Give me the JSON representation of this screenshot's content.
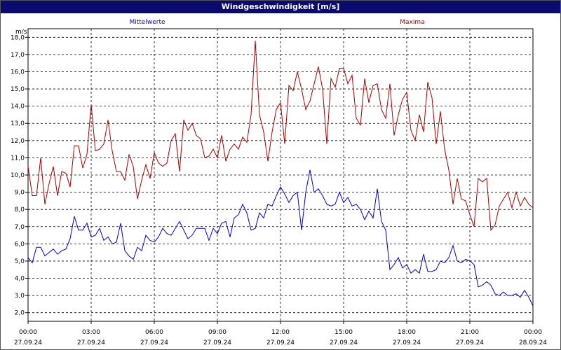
{
  "chart_data": {
    "type": "line",
    "title": "Windgeschwindigkeit [m/s]",
    "ylabel": "m/s",
    "ylim": [
      1.5,
      18.5
    ],
    "xlim": [
      0,
      24
    ],
    "grid": true,
    "yticks": [
      "2,0",
      "3,0",
      "4,0",
      "5,0",
      "6,0",
      "7,0",
      "8,0",
      "9,0",
      "10,0",
      "11,0",
      "12,0",
      "13,0",
      "14,0",
      "15,0",
      "16,0",
      "17,0",
      "18,0"
    ],
    "xticks": [
      {
        "time": "00:00",
        "date": "27.09.24"
      },
      {
        "time": "03:00",
        "date": "27.09.24"
      },
      {
        "time": "06:00",
        "date": "27.09.24"
      },
      {
        "time": "09:00",
        "date": "27.09.24"
      },
      {
        "time": "12:00",
        "date": "27.09.24"
      },
      {
        "time": "15:00",
        "date": "27.09.24"
      },
      {
        "time": "18:00",
        "date": "27.09.24"
      },
      {
        "time": "21:00",
        "date": "27.09.24"
      },
      {
        "time": "00:00",
        "date": "28.09.24"
      }
    ],
    "series": [
      {
        "name": "Mittelwerte",
        "color": "#0000cc",
        "points": [
          [
            0.0,
            5.2
          ],
          [
            0.2,
            4.9
          ],
          [
            0.4,
            5.8
          ],
          [
            0.6,
            5.8
          ],
          [
            0.8,
            5.3
          ],
          [
            1.0,
            5.5
          ],
          [
            1.2,
            5.7
          ],
          [
            1.4,
            5.4
          ],
          [
            1.6,
            5.6
          ],
          [
            1.8,
            5.7
          ],
          [
            2.0,
            6.3
          ],
          [
            2.2,
            7.6
          ],
          [
            2.4,
            6.8
          ],
          [
            2.6,
            6.8
          ],
          [
            2.8,
            7.2
          ],
          [
            3.0,
            6.4
          ],
          [
            3.2,
            6.5
          ],
          [
            3.4,
            6.9
          ],
          [
            3.6,
            6.2
          ],
          [
            3.8,
            6.4
          ],
          [
            4.0,
            6.0
          ],
          [
            4.2,
            6.1
          ],
          [
            4.4,
            7.2
          ],
          [
            4.6,
            5.6
          ],
          [
            4.8,
            5.3
          ],
          [
            5.0,
            5.1
          ],
          [
            5.2,
            5.8
          ],
          [
            5.4,
            5.6
          ],
          [
            5.6,
            6.5
          ],
          [
            5.8,
            6.2
          ],
          [
            6.0,
            6.1
          ],
          [
            6.2,
            6.4
          ],
          [
            6.4,
            6.9
          ],
          [
            6.6,
            6.6
          ],
          [
            6.8,
            6.5
          ],
          [
            7.0,
            6.9
          ],
          [
            7.2,
            7.3
          ],
          [
            7.4,
            6.8
          ],
          [
            7.6,
            6.3
          ],
          [
            7.8,
            6.5
          ],
          [
            8.0,
            6.9
          ],
          [
            8.2,
            6.9
          ],
          [
            8.4,
            6.9
          ],
          [
            8.6,
            6.2
          ],
          [
            8.8,
            6.9
          ],
          [
            9.0,
            6.6
          ],
          [
            9.2,
            7.2
          ],
          [
            9.4,
            7.3
          ],
          [
            9.6,
            6.4
          ],
          [
            9.8,
            7.5
          ],
          [
            10.0,
            7.7
          ],
          [
            10.2,
            8.3
          ],
          [
            10.4,
            7.8
          ],
          [
            10.6,
            6.8
          ],
          [
            10.8,
            6.9
          ],
          [
            11.0,
            7.8
          ],
          [
            11.2,
            7.5
          ],
          [
            11.4,
            8.3
          ],
          [
            11.6,
            8.2
          ],
          [
            11.8,
            8.8
          ],
          [
            12.0,
            9.3
          ],
          [
            12.2,
            8.9
          ],
          [
            12.4,
            8.4
          ],
          [
            12.6,
            8.8
          ],
          [
            12.8,
            9.0
          ],
          [
            13.0,
            6.8
          ],
          [
            13.2,
            9.0
          ],
          [
            13.4,
            10.3
          ],
          [
            13.6,
            9.0
          ],
          [
            13.8,
            9.2
          ],
          [
            14.0,
            8.8
          ],
          [
            14.2,
            8.3
          ],
          [
            14.4,
            8.2
          ],
          [
            14.6,
            8.3
          ],
          [
            14.8,
            9.0
          ],
          [
            15.0,
            8.4
          ],
          [
            15.2,
            8.7
          ],
          [
            15.4,
            8.2
          ],
          [
            15.6,
            8.3
          ],
          [
            15.8,
            8.0
          ],
          [
            16.0,
            7.4
          ],
          [
            16.2,
            7.9
          ],
          [
            16.4,
            7.5
          ],
          [
            16.6,
            9.2
          ],
          [
            16.8,
            7.3
          ],
          [
            17.0,
            6.8
          ],
          [
            17.2,
            4.5
          ],
          [
            17.4,
            4.8
          ],
          [
            17.6,
            5.2
          ],
          [
            17.8,
            4.6
          ],
          [
            18.0,
            4.8
          ],
          [
            18.2,
            4.3
          ],
          [
            18.4,
            4.5
          ],
          [
            18.6,
            4.3
          ],
          [
            18.8,
            5.4
          ],
          [
            19.0,
            4.4
          ],
          [
            19.2,
            4.4
          ],
          [
            19.4,
            4.5
          ],
          [
            19.6,
            5.0
          ],
          [
            19.8,
            4.9
          ],
          [
            20.0,
            5.2
          ],
          [
            20.2,
            5.9
          ],
          [
            20.4,
            5.0
          ],
          [
            20.6,
            4.9
          ],
          [
            20.8,
            5.1
          ],
          [
            21.0,
            5.0
          ],
          [
            21.2,
            4.8
          ],
          [
            21.4,
            3.5
          ],
          [
            21.6,
            3.6
          ],
          [
            21.8,
            3.8
          ],
          [
            22.0,
            3.6
          ],
          [
            22.2,
            3.1
          ],
          [
            22.4,
            3.0
          ],
          [
            22.6,
            3.2
          ],
          [
            22.8,
            3.0
          ],
          [
            23.0,
            3.0
          ],
          [
            23.2,
            3.1
          ],
          [
            23.4,
            2.9
          ],
          [
            23.6,
            3.3
          ],
          [
            23.8,
            2.9
          ],
          [
            24.0,
            2.4
          ]
        ]
      },
      {
        "name": "Maxima",
        "color": "#aa0000",
        "points": [
          [
            0.0,
            10.5
          ],
          [
            0.2,
            8.8
          ],
          [
            0.4,
            8.8
          ],
          [
            0.6,
            11.0
          ],
          [
            0.8,
            8.3
          ],
          [
            1.0,
            9.5
          ],
          [
            1.2,
            10.5
          ],
          [
            1.4,
            8.8
          ],
          [
            1.6,
            10.2
          ],
          [
            1.8,
            10.1
          ],
          [
            2.0,
            9.3
          ],
          [
            2.2,
            11.7
          ],
          [
            2.4,
            11.7
          ],
          [
            2.6,
            10.4
          ],
          [
            2.8,
            11.2
          ],
          [
            3.0,
            14.1
          ],
          [
            3.2,
            11.4
          ],
          [
            3.4,
            11.5
          ],
          [
            3.6,
            11.8
          ],
          [
            3.8,
            13.2
          ],
          [
            4.0,
            11.4
          ],
          [
            4.2,
            10.2
          ],
          [
            4.4,
            10.2
          ],
          [
            4.6,
            9.7
          ],
          [
            4.8,
            11.2
          ],
          [
            5.0,
            10.5
          ],
          [
            5.2,
            8.6
          ],
          [
            5.4,
            9.7
          ],
          [
            5.6,
            10.6
          ],
          [
            5.8,
            9.8
          ],
          [
            6.0,
            11.3
          ],
          [
            6.2,
            10.7
          ],
          [
            6.4,
            10.5
          ],
          [
            6.6,
            10.7
          ],
          [
            6.8,
            12.0
          ],
          [
            7.0,
            12.4
          ],
          [
            7.2,
            10.2
          ],
          [
            7.4,
            13.2
          ],
          [
            7.6,
            12.6
          ],
          [
            7.8,
            13.0
          ],
          [
            8.0,
            12.3
          ],
          [
            8.2,
            12.1
          ],
          [
            8.4,
            11.0
          ],
          [
            8.6,
            11.1
          ],
          [
            8.8,
            11.5
          ],
          [
            9.0,
            11.0
          ],
          [
            9.2,
            12.3
          ],
          [
            9.4,
            10.8
          ],
          [
            9.6,
            11.5
          ],
          [
            9.8,
            11.8
          ],
          [
            10.0,
            11.5
          ],
          [
            10.2,
            12.2
          ],
          [
            10.4,
            11.9
          ],
          [
            10.6,
            13.5
          ],
          [
            10.8,
            17.8
          ],
          [
            11.0,
            13.5
          ],
          [
            11.2,
            12.5
          ],
          [
            11.4,
            10.8
          ],
          [
            11.6,
            12.5
          ],
          [
            11.8,
            13.8
          ],
          [
            12.0,
            14.2
          ],
          [
            12.2,
            11.8
          ],
          [
            12.4,
            15.2
          ],
          [
            12.6,
            14.9
          ],
          [
            12.8,
            16.0
          ],
          [
            13.0,
            15.0
          ],
          [
            13.2,
            13.8
          ],
          [
            13.4,
            14.3
          ],
          [
            13.6,
            15.3
          ],
          [
            13.8,
            16.3
          ],
          [
            14.0,
            15.0
          ],
          [
            14.2,
            11.8
          ],
          [
            14.4,
            15.6
          ],
          [
            14.6,
            15.1
          ],
          [
            14.8,
            16.2
          ],
          [
            15.0,
            16.2
          ],
          [
            15.2,
            15.3
          ],
          [
            15.4,
            15.8
          ],
          [
            15.6,
            13.3
          ],
          [
            15.8,
            12.9
          ],
          [
            16.0,
            15.6
          ],
          [
            16.2,
            14.2
          ],
          [
            16.4,
            15.2
          ],
          [
            16.6,
            15.3
          ],
          [
            16.8,
            13.8
          ],
          [
            17.0,
            13.3
          ],
          [
            17.2,
            15.3
          ],
          [
            17.4,
            12.3
          ],
          [
            17.6,
            13.5
          ],
          [
            17.8,
            14.4
          ],
          [
            18.0,
            14.8
          ],
          [
            18.2,
            12.6
          ],
          [
            18.4,
            12.0
          ],
          [
            18.6,
            13.5
          ],
          [
            18.8,
            12.5
          ],
          [
            19.0,
            15.4
          ],
          [
            19.2,
            14.5
          ],
          [
            19.4,
            11.8
          ],
          [
            19.6,
            13.7
          ],
          [
            19.8,
            11.5
          ],
          [
            20.0,
            10.3
          ],
          [
            20.2,
            8.3
          ],
          [
            20.4,
            9.8
          ],
          [
            20.6,
            8.6
          ],
          [
            20.8,
            8.5
          ],
          [
            21.0,
            7.7
          ],
          [
            21.2,
            7.0
          ],
          [
            21.4,
            9.8
          ],
          [
            21.6,
            9.6
          ],
          [
            21.8,
            9.8
          ],
          [
            22.0,
            6.8
          ],
          [
            22.2,
            7.1
          ],
          [
            22.4,
            8.2
          ],
          [
            22.6,
            8.6
          ],
          [
            22.8,
            9.0
          ],
          [
            23.0,
            8.1
          ],
          [
            23.2,
            9.0
          ],
          [
            23.4,
            8.2
          ],
          [
            23.6,
            8.7
          ],
          [
            23.8,
            8.3
          ],
          [
            24.0,
            8.1
          ]
        ]
      }
    ]
  }
}
